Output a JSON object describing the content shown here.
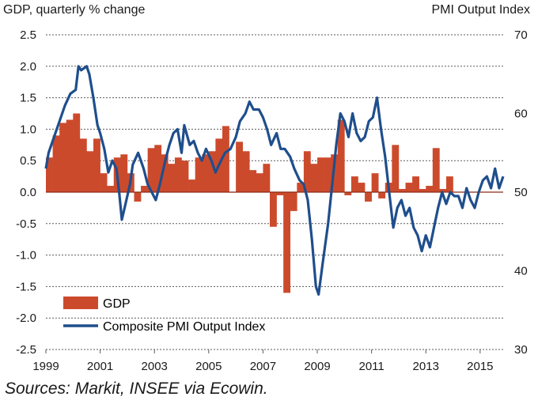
{
  "chart_data": {
    "type": "bar+line",
    "title": "",
    "left_axis_title": "GDP, quarterly % change",
    "right_axis_title": "PMI Output  Index",
    "left_ticks": [
      "2.5",
      "2.0",
      "1.5",
      "1.0",
      "0.5",
      "0.0",
      "-0.5",
      "-1.0",
      "-1.5",
      "-2.0",
      "-2.5"
    ],
    "right_ticks": [
      "70",
      "60",
      "50",
      "40",
      "30"
    ],
    "x_ticks": [
      "1999",
      "2001",
      "2003",
      "2005",
      "2007",
      "2009",
      "2011",
      "2013",
      "2015"
    ],
    "ylim_left": [
      -2.5,
      2.5
    ],
    "ylim_right": [
      30,
      70
    ],
    "xlim": [
      1999.0,
      2015.85
    ],
    "legend": {
      "gdp_label": "GDP",
      "pmi_label": "Composite PMI Output Index"
    },
    "source": "Sources: Markit, INSEE via Ecowin.",
    "colors": {
      "gdp": "#cc4a2c",
      "pmi": "#1f4e8c",
      "grid": "#5a5a5a",
      "text": "#1a1a1a"
    },
    "gdp": {
      "start_year": 1999.0,
      "step_years": 0.25,
      "values": [
        0.55,
        0.9,
        1.1,
        1.15,
        1.25,
        0.85,
        0.65,
        0.85,
        0.3,
        0.1,
        0.55,
        0.6,
        0.3,
        -0.15,
        0.1,
        0.7,
        0.75,
        0.6,
        0.45,
        0.55,
        0.5,
        0.2,
        0.55,
        0.6,
        0.65,
        0.85,
        1.05,
        0.0,
        0.8,
        0.65,
        0.35,
        0.3,
        0.45,
        -0.55,
        -0.05,
        -1.6,
        -0.3,
        0.15,
        0.65,
        0.45,
        0.55,
        0.55,
        0.6,
        1.15,
        -0.05,
        0.25,
        0.15,
        -0.15,
        0.3,
        -0.1,
        0.15,
        0.75,
        0.05,
        0.15,
        0.25,
        0.05,
        0.1,
        0.7,
        0.05,
        0.25
      ]
    },
    "pmi": {
      "start_year": 1999.0,
      "step_years": 1,
      "values": [
        [
          1999.0,
          53
        ],
        [
          1999.1,
          55
        ],
        [
          1999.3,
          57
        ],
        [
          1999.5,
          59
        ],
        [
          1999.7,
          61
        ],
        [
          1999.9,
          62.5
        ],
        [
          2000.1,
          63
        ],
        [
          2000.2,
          66
        ],
        [
          2000.3,
          65.5
        ],
        [
          2000.5,
          66
        ],
        [
          2000.6,
          65
        ],
        [
          2000.75,
          62
        ],
        [
          2000.9,
          58.5
        ],
        [
          2001.0,
          57.5
        ],
        [
          2001.15,
          55.5
        ],
        [
          2001.3,
          52.5
        ],
        [
          2001.45,
          54
        ],
        [
          2001.6,
          53
        ],
        [
          2001.7,
          50
        ],
        [
          2001.8,
          46.5
        ],
        [
          2001.9,
          48
        ],
        [
          2002.1,
          51
        ],
        [
          2002.2,
          53.5
        ],
        [
          2002.4,
          55
        ],
        [
          2002.6,
          53
        ],
        [
          2002.75,
          51
        ],
        [
          2002.9,
          50
        ],
        [
          2003.05,
          49
        ],
        [
          2003.2,
          51
        ],
        [
          2003.4,
          54
        ],
        [
          2003.55,
          56
        ],
        [
          2003.7,
          57.5
        ],
        [
          2003.85,
          58
        ],
        [
          2004.0,
          55
        ],
        [
          2004.1,
          58.5
        ],
        [
          2004.3,
          56
        ],
        [
          2004.45,
          56.5
        ],
        [
          2004.6,
          55
        ],
        [
          2004.75,
          54
        ],
        [
          2004.9,
          55.5
        ],
        [
          2005.1,
          54
        ],
        [
          2005.25,
          52.5
        ],
        [
          2005.45,
          54
        ],
        [
          2005.6,
          55
        ],
        [
          2005.8,
          55.5
        ],
        [
          2006.0,
          57
        ],
        [
          2006.15,
          59
        ],
        [
          2006.35,
          60
        ],
        [
          2006.5,
          61.5
        ],
        [
          2006.65,
          60.5
        ],
        [
          2006.85,
          60.5
        ],
        [
          2007.0,
          59.5
        ],
        [
          2007.15,
          58
        ],
        [
          2007.3,
          56
        ],
        [
          2007.5,
          57.5
        ],
        [
          2007.65,
          55.5
        ],
        [
          2007.8,
          55.5
        ],
        [
          2008.0,
          54.5
        ],
        [
          2008.15,
          53
        ],
        [
          2008.35,
          51.5
        ],
        [
          2008.5,
          51
        ],
        [
          2008.65,
          49
        ],
        [
          2008.8,
          44
        ],
        [
          2008.95,
          38
        ],
        [
          2009.05,
          37
        ],
        [
          2009.2,
          41
        ],
        [
          2009.4,
          46
        ],
        [
          2009.55,
          51
        ],
        [
          2009.7,
          56
        ],
        [
          2009.85,
          60
        ],
        [
          2010.0,
          59
        ],
        [
          2010.15,
          57
        ],
        [
          2010.3,
          60
        ],
        [
          2010.45,
          57.5
        ],
        [
          2010.6,
          56.5
        ],
        [
          2010.75,
          57
        ],
        [
          2010.9,
          59
        ],
        [
          2011.05,
          59.5
        ],
        [
          2011.2,
          62
        ],
        [
          2011.35,
          58
        ],
        [
          2011.5,
          54.5
        ],
        [
          2011.65,
          50
        ],
        [
          2011.8,
          45.5
        ],
        [
          2011.95,
          48
        ],
        [
          2012.1,
          49
        ],
        [
          2012.25,
          47
        ],
        [
          2012.4,
          48
        ],
        [
          2012.55,
          45.5
        ],
        [
          2012.7,
          44.5
        ],
        [
          2012.85,
          42.5
        ],
        [
          2013.0,
          44.5
        ],
        [
          2013.15,
          43
        ],
        [
          2013.3,
          45.5
        ],
        [
          2013.45,
          48
        ],
        [
          2013.6,
          50
        ],
        [
          2013.75,
          48.5
        ],
        [
          2013.9,
          50
        ],
        [
          2014.05,
          49.5
        ],
        [
          2014.2,
          49.5
        ],
        [
          2014.35,
          48
        ],
        [
          2014.5,
          50.5
        ],
        [
          2014.65,
          49
        ],
        [
          2014.8,
          48
        ],
        [
          2014.95,
          50
        ],
        [
          2015.1,
          51.5
        ],
        [
          2015.25,
          52
        ],
        [
          2015.4,
          50.5
        ],
        [
          2015.55,
          53
        ],
        [
          2015.7,
          50.5
        ],
        [
          2015.85,
          52
        ]
      ]
    }
  }
}
